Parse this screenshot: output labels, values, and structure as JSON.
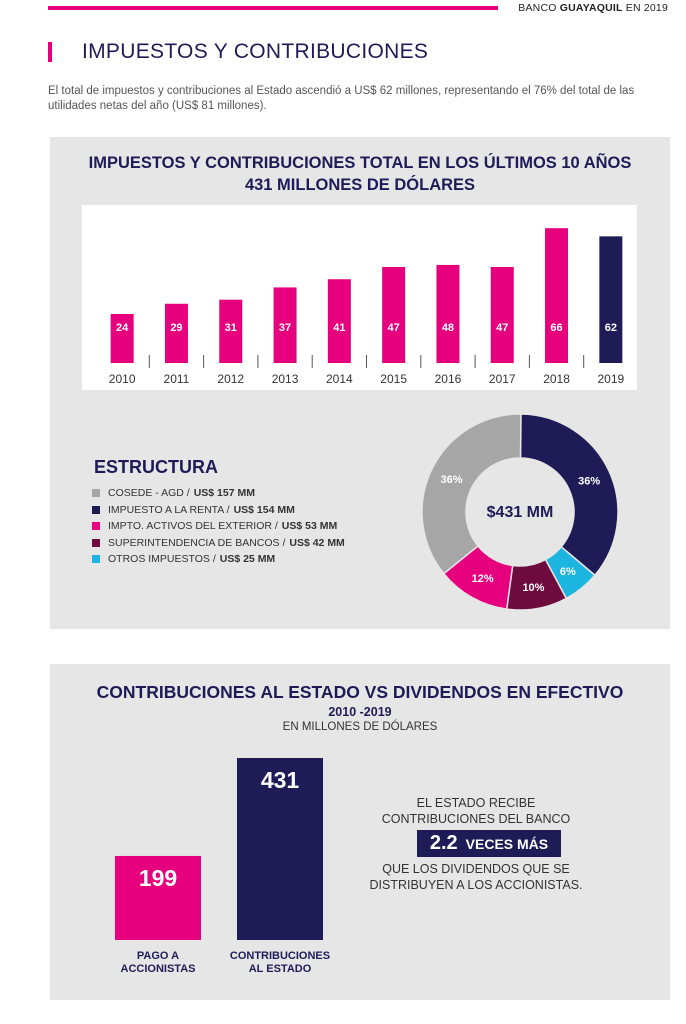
{
  "header": {
    "brand_prefix": "BANCO",
    "brand_name": "GUAYAQUIL",
    "brand_suffix": "EN 2019"
  },
  "section": {
    "title": "IMPUESTOS Y CONTRIBUCIONES",
    "intro": "El total de impuestos y contribuciones al Estado ascendió a US$ 62 millones, representando el 76% del total de las utilidades netas del año (US$ 81 millones)."
  },
  "colors": {
    "pink": "#e6007e",
    "navy": "#1e1b57",
    "gray": "#a6a6a6",
    "maroon": "#6d0a3e",
    "cyan": "#1bb5e0",
    "panel": "#e6e6e6"
  },
  "chart_data": [
    {
      "type": "bar",
      "title": "IMPUESTOS Y CONTRIBUCIONES TOTAL EN LOS ÚLTIMOS 10 AÑOS",
      "subtitle": "431 MILLONES DE DÓLARES",
      "categories": [
        "2010",
        "2011",
        "2012",
        "2013",
        "2014",
        "2015",
        "2016",
        "2017",
        "2018",
        "2019"
      ],
      "values": [
        24,
        29,
        31,
        37,
        41,
        47,
        48,
        47,
        66,
        62
      ],
      "highlight_index": 9,
      "ylim": [
        0,
        70
      ],
      "grid": false
    },
    {
      "type": "pie",
      "title": "ESTRUCTURA",
      "center_label": "$431 MM",
      "slices": [
        {
          "label": "COSEDE - AGD",
          "amount": "US$ 157 MM",
          "value": 36,
          "display": "36%",
          "color": "#a6a6a6"
        },
        {
          "label": "IMPUESTO A LA RENTA",
          "amount": "US$ 154 MM",
          "value": 36,
          "display": "36%",
          "color": "#1e1b57"
        },
        {
          "label": "IMPTO. ACTIVOS DEL EXTERIOR",
          "amount": "US$ 53 MM",
          "value": 12,
          "display": "12%",
          "color": "#e6007e"
        },
        {
          "label": "SUPERINTENDENCIA DE BANCOS",
          "amount": "US$ 42 MM",
          "value": 10,
          "display": "10%",
          "color": "#6d0a3e"
        },
        {
          "label": "OTROS IMPUESTOS",
          "amount": "US$ 25 MM",
          "value": 6,
          "display": "6%",
          "color": "#1bb5e0"
        }
      ]
    },
    {
      "type": "bar",
      "title": "CONTRIBUCIONES AL ESTADO VS DIVIDENDOS EN EFECTIVO",
      "subtitle": "2010 -2019",
      "unit": "EN MILLONES DE DÓLARES",
      "categories": [
        [
          "PAGO A",
          "ACCIONISTAS"
        ],
        [
          "CONTRIBUCIONES",
          "AL ESTADO"
        ]
      ],
      "values": [
        199,
        431
      ],
      "colors": [
        "#e6007e",
        "#1e1b57"
      ],
      "ylim": [
        0,
        431
      ]
    }
  ],
  "comparison": {
    "line1": "EL ESTADO RECIBE",
    "line2": "CONTRIBUCIONES DEL BANCO",
    "factor": "2.2",
    "factor_label": "VECES MÁS",
    "line3": "QUE LOS DIVIDENDOS QUE SE",
    "line4": "DISTRIBUYEN A LOS ACCIONISTAS."
  }
}
